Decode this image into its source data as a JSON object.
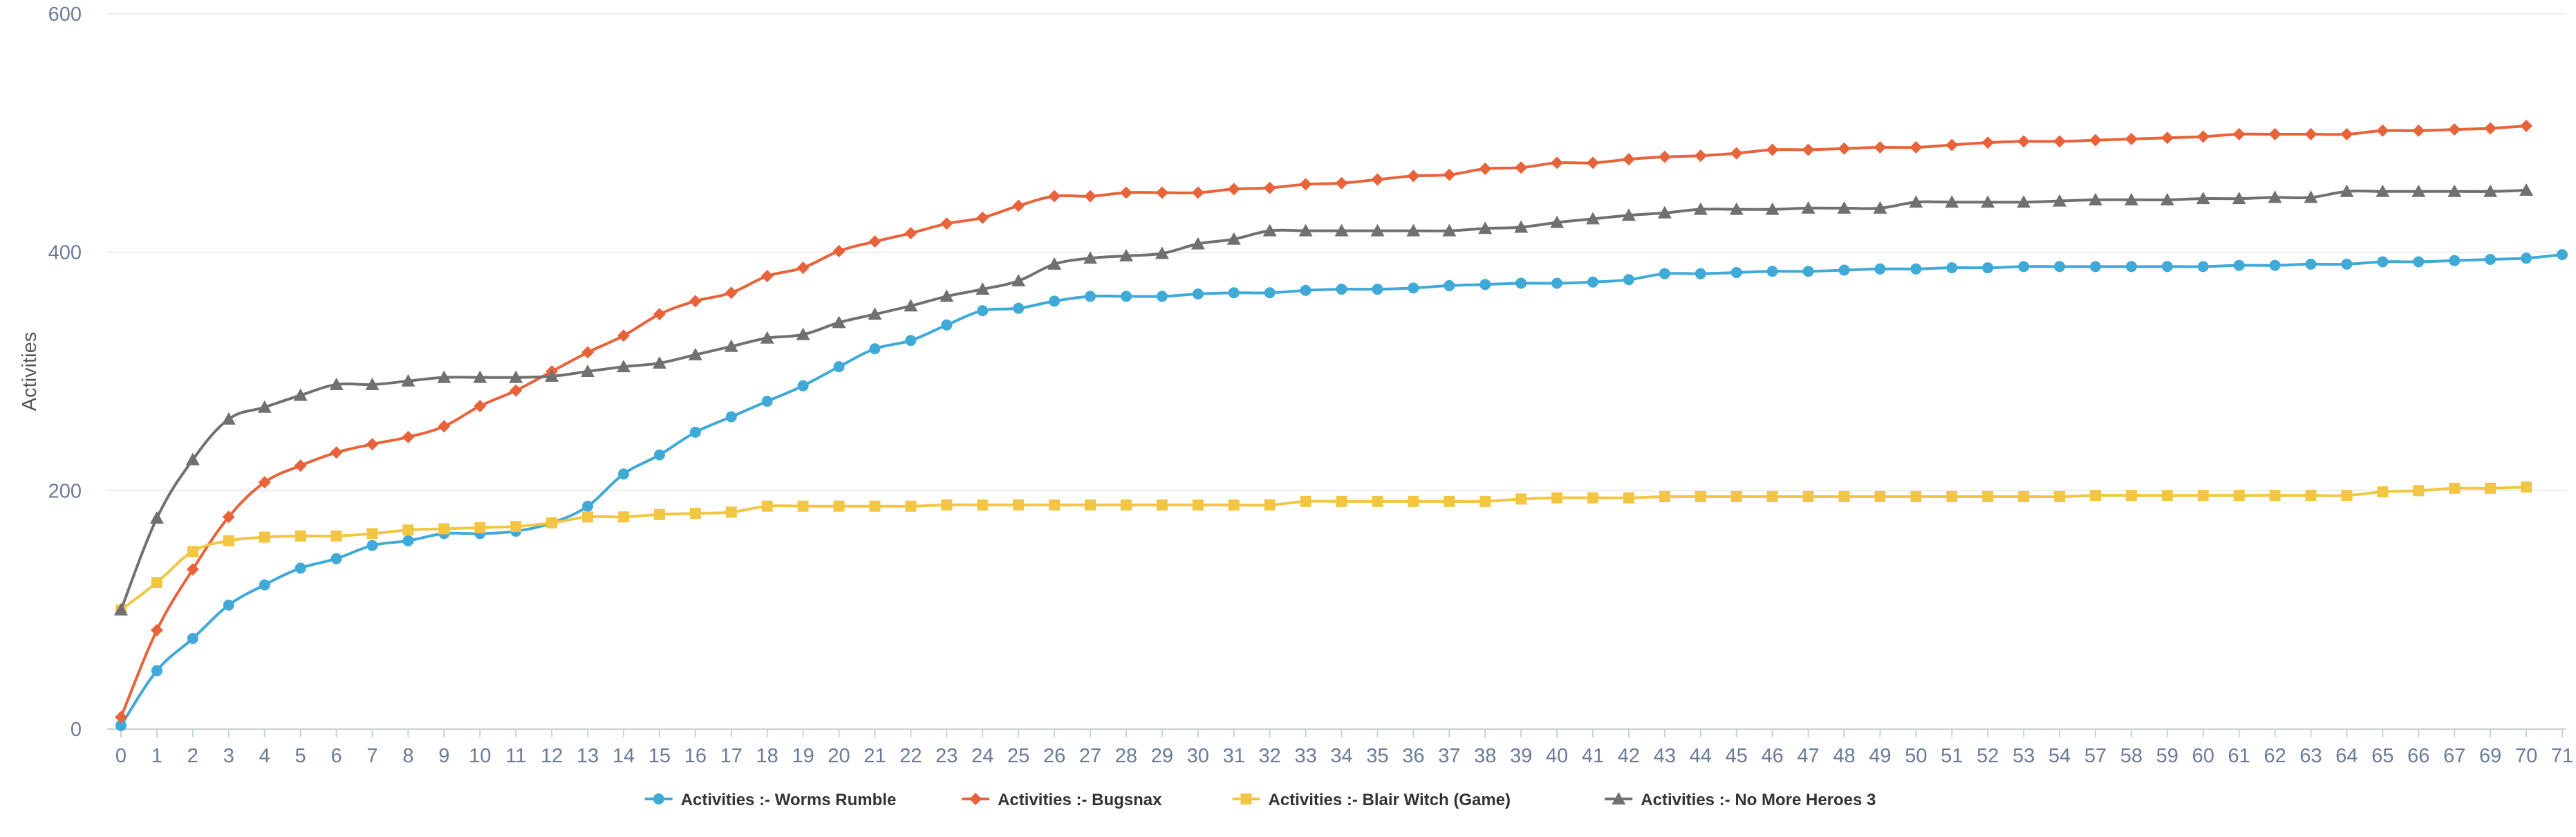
{
  "chart_data": {
    "type": "line",
    "title": "",
    "xlabel": "",
    "ylabel": "Activities",
    "ylim": [
      0,
      600
    ],
    "yticks": [
      0,
      200,
      400,
      600
    ],
    "grid": true,
    "legend_position": "bottom-center",
    "categories": [
      "0",
      "1",
      "2",
      "3",
      "4",
      "5",
      "6",
      "7",
      "8",
      "9",
      "10",
      "11",
      "12",
      "13",
      "14",
      "15",
      "16",
      "17",
      "18",
      "19",
      "20",
      "21",
      "22",
      "23",
      "24",
      "25",
      "26",
      "27",
      "28",
      "29",
      "30",
      "31",
      "32",
      "33",
      "34",
      "35",
      "36",
      "37",
      "38",
      "39",
      "40",
      "41",
      "42",
      "43",
      "44",
      "45",
      "46",
      "47",
      "48",
      "49",
      "50",
      "51",
      "52",
      "53",
      "54",
      "57",
      "58",
      "59",
      "60",
      "61",
      "62",
      "63",
      "64",
      "65",
      "66",
      "67",
      "69",
      "70",
      "71"
    ],
    "series": [
      {
        "name": "Activities :- Worms Rumble",
        "color": "#3fa9d8",
        "marker": "circle",
        "values": [
          3,
          49,
          76,
          104,
          121,
          135,
          143,
          154,
          158,
          164,
          164,
          166,
          173,
          187,
          214,
          230,
          249,
          262,
          275,
          288,
          304,
          319,
          326,
          339,
          351,
          353,
          359,
          363,
          363,
          363,
          365,
          366,
          366,
          368,
          369,
          369,
          370,
          372,
          373,
          374,
          374,
          375,
          377,
          382,
          382,
          383,
          384,
          384,
          385,
          386,
          386,
          387,
          387,
          388,
          388,
          388,
          388,
          388,
          388,
          389,
          389,
          390,
          390,
          392,
          392,
          393,
          394,
          395,
          398
        ]
      },
      {
        "name": "Activities :- Bugsnax",
        "color": "#e8623a",
        "marker": "diamond",
        "values": [
          10,
          83,
          134,
          178,
          207,
          221,
          232,
          239,
          245,
          254,
          271,
          284,
          300,
          316,
          330,
          348,
          359,
          366,
          380,
          387,
          401,
          409,
          416,
          424,
          429,
          439,
          447,
          447,
          450,
          450,
          450,
          453,
          454,
          457,
          458,
          461,
          464,
          465,
          470,
          471,
          475,
          475,
          478,
          480,
          481,
          483,
          486,
          486,
          487,
          488,
          488,
          490,
          492,
          493,
          493,
          494,
          495,
          496,
          497,
          499,
          499,
          499,
          499,
          502,
          502,
          503,
          504,
          506,
          null
        ]
      },
      {
        "name": "Activities :- Blair Witch (Game)",
        "color": "#f2c642",
        "marker": "square",
        "values": [
          100,
          123,
          149,
          158,
          161,
          162,
          162,
          164,
          167,
          168,
          169,
          170,
          173,
          178,
          178,
          180,
          181,
          182,
          187,
          187,
          187,
          187,
          187,
          188,
          188,
          188,
          188,
          188,
          188,
          188,
          188,
          188,
          188,
          191,
          191,
          191,
          191,
          191,
          191,
          193,
          194,
          194,
          194,
          195,
          195,
          195,
          195,
          195,
          195,
          195,
          195,
          195,
          195,
          195,
          195,
          196,
          196,
          196,
          196,
          196,
          196,
          196,
          196,
          199,
          200,
          202,
          202,
          203,
          null
        ]
      },
      {
        "name": "Activities :- No More Heroes 3",
        "color": "#707070",
        "marker": "triangle",
        "values": [
          100,
          177,
          226,
          260,
          270,
          280,
          289,
          289,
          292,
          295,
          295,
          295,
          296,
          300,
          304,
          307,
          314,
          321,
          328,
          331,
          341,
          348,
          355,
          363,
          369,
          376,
          390,
          395,
          397,
          399,
          407,
          411,
          418,
          418,
          418,
          418,
          418,
          418,
          420,
          421,
          425,
          428,
          431,
          433,
          436,
          436,
          436,
          437,
          437,
          437,
          442,
          442,
          442,
          442,
          443,
          444,
          444,
          444,
          445,
          445,
          446,
          446,
          451,
          451,
          451,
          451,
          451,
          452,
          null
        ]
      }
    ]
  }
}
